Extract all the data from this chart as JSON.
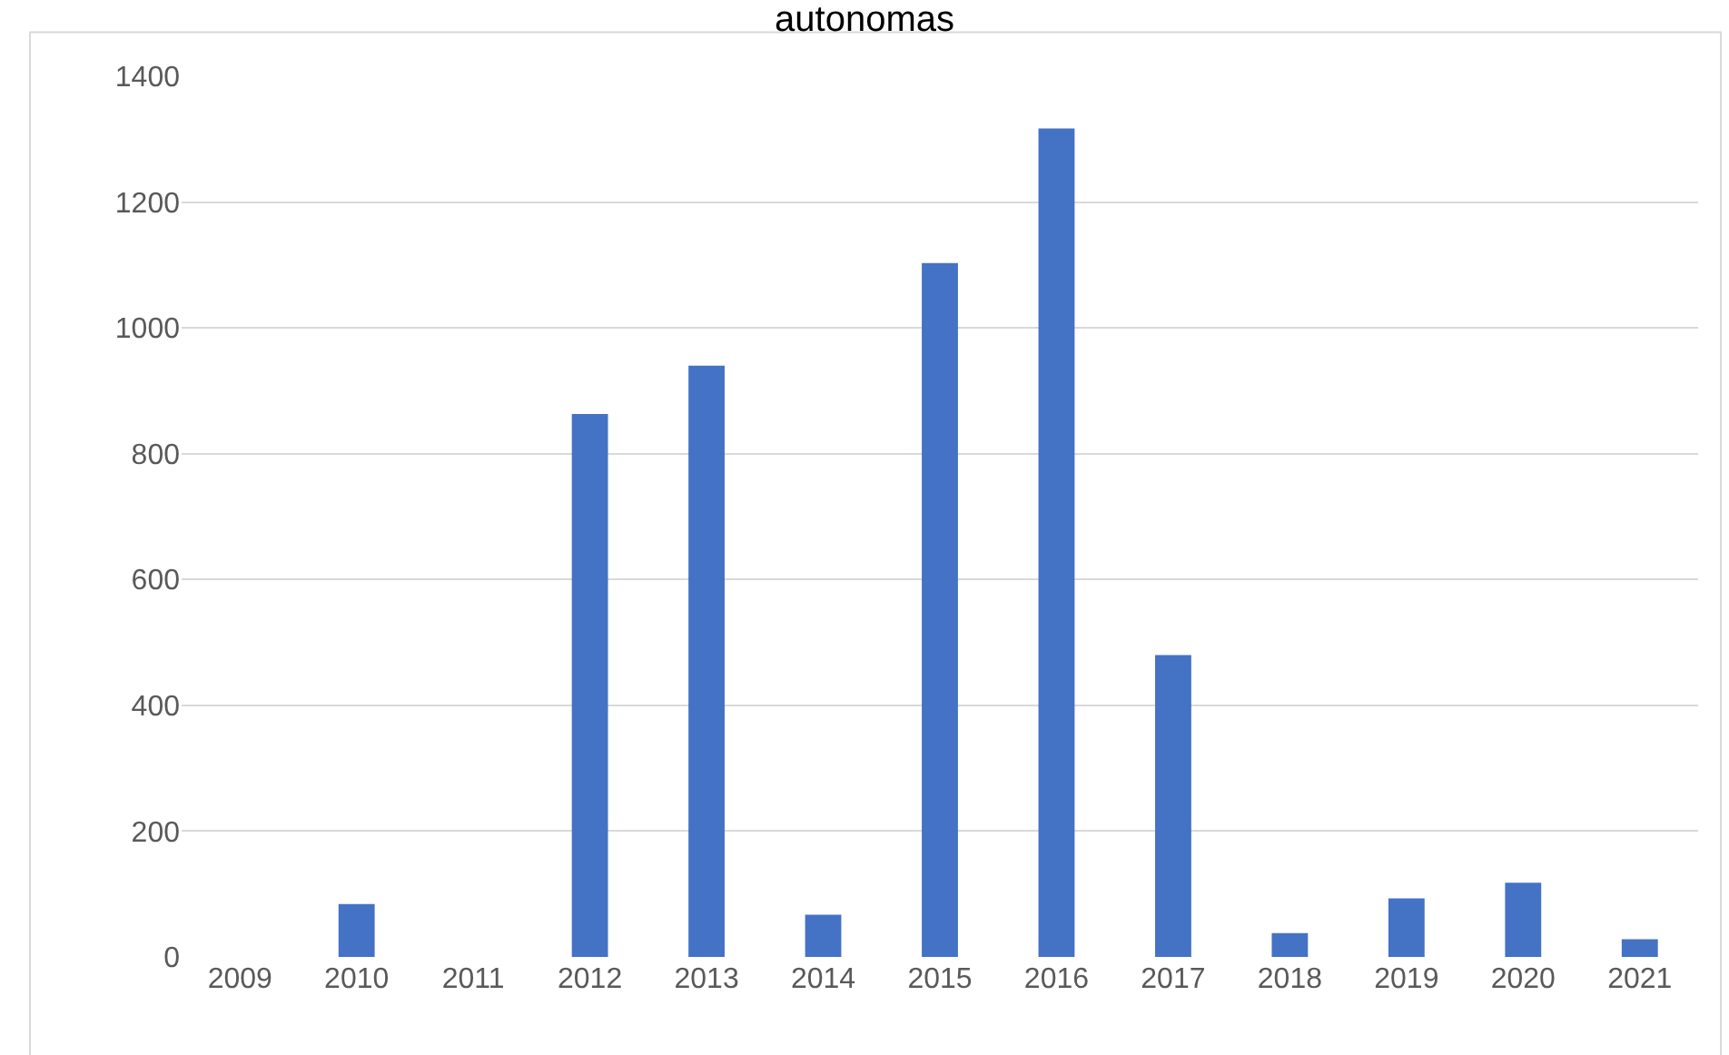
{
  "chart_data": {
    "type": "bar",
    "title": "autonomas",
    "categories": [
      "2009",
      "2010",
      "2011",
      "2012",
      "2013",
      "2014",
      "2015",
      "2016",
      "2017",
      "2018",
      "2019",
      "2020",
      "2021"
    ],
    "values": [
      0,
      84,
      0,
      863,
      940,
      67,
      1103,
      1317,
      480,
      38,
      93,
      118,
      28
    ],
    "color": "#4472c4",
    "ylim": [
      0,
      1400
    ],
    "yticks": [
      0,
      200,
      400,
      600,
      800,
      1000,
      1200,
      1400
    ],
    "grid": "y"
  }
}
